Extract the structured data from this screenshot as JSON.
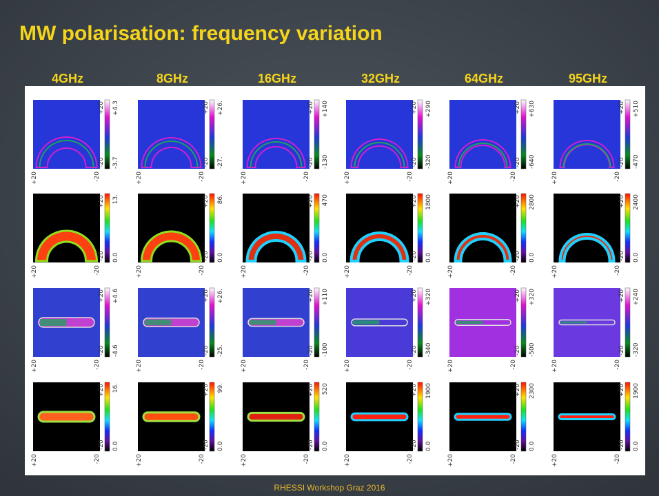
{
  "title": "MW polarisation: frequency variation",
  "columns": [
    "4GHz",
    "8GHz",
    "16GHz",
    "32GHz",
    "64GHz",
    "95GHz"
  ],
  "axis_labels": {
    "top": "+20",
    "bottom": "-20"
  },
  "panels": [
    [
      {
        "max": "+4.3",
        "min": "-3.7"
      },
      {
        "max": "+26.",
        "min": "-27."
      },
      {
        "max": "+140",
        "min": "-130"
      },
      {
        "max": "+290",
        "min": "-320"
      },
      {
        "max": "+630",
        "min": "-640"
      },
      {
        "max": "+510",
        "min": "-470"
      }
    ],
    [
      {
        "max": "13.",
        "min": "0.0"
      },
      {
        "max": "86.",
        "min": "0.0"
      },
      {
        "max": "470",
        "min": "0.0"
      },
      {
        "max": "1800",
        "min": "0.0"
      },
      {
        "max": "2800",
        "min": "0.0"
      },
      {
        "max": "2400",
        "min": "0.0"
      }
    ],
    [
      {
        "max": "+4.6",
        "min": "-4.6"
      },
      {
        "max": "+26.",
        "min": "-25."
      },
      {
        "max": "+110",
        "min": "-100"
      },
      {
        "max": "+320",
        "min": "-340"
      },
      {
        "max": "+320",
        "min": "-500"
      },
      {
        "max": "+240",
        "min": "-320"
      }
    ],
    [
      {
        "max": "16.",
        "min": "0.0"
      },
      {
        "max": "99.",
        "min": "0.0"
      },
      {
        "max": "520",
        "min": "0.0"
      },
      {
        "max": "1900",
        "min": "0.0"
      },
      {
        "max": "2300",
        "min": "0.0"
      },
      {
        "max": "1900",
        "min": "0.0"
      }
    ]
  ],
  "footer": "RHESSI Workshop Graz 2016"
}
